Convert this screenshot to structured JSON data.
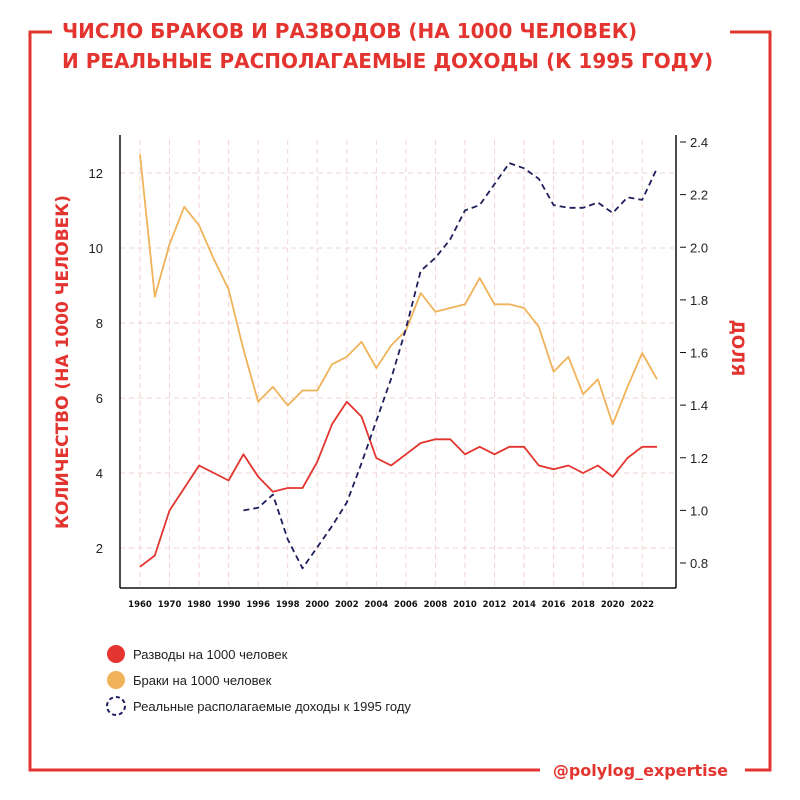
{
  "title_line1": "ЧИСЛО БРАКОВ И РАЗВОДОВ (НА 1000 ЧЕЛОВЕК)",
  "title_line2": "И РЕАЛЬНЫЕ РАСПОЛАГАЕМЫЕ ДОХОДЫ (К 1995 ГОДУ)",
  "handle": "@polylog_expertise",
  "colors": {
    "accent": "#e3342f",
    "divorces": "#e3342f",
    "marriages": "#f0b35a",
    "income": "#1f1f5e"
  },
  "chart_data": {
    "type": "line",
    "x": [
      "1960",
      "1965",
      "1970",
      "1975",
      "1980",
      "1985",
      "1990",
      "1995",
      "1996",
      "1997",
      "1998",
      "1999",
      "2000",
      "2001",
      "2002",
      "2003",
      "2004",
      "2005",
      "2006",
      "2007",
      "2008",
      "2009",
      "2010",
      "2011",
      "2012",
      "2013",
      "2014",
      "2015",
      "2016",
      "2017",
      "2018",
      "2019",
      "2020",
      "2021",
      "2022",
      "2023"
    ],
    "xticks": [
      "1960",
      "1970",
      "1980",
      "1990",
      "1996",
      "1998",
      "2000",
      "2002",
      "2004",
      "2006",
      "2008",
      "2010",
      "2012",
      "2014",
      "2016",
      "2018",
      "2020",
      "2022"
    ],
    "ylabel_left": "КОЛИЧЕСТВО (НА 1000 ЧЕЛОВЕК)",
    "ylabel_right": "ДОЛЯ",
    "y_left_ticks": [
      "2",
      "4",
      "6",
      "8",
      "10",
      "12"
    ],
    "y_right_ticks": [
      "0.8",
      "1.0",
      "1.2",
      "1.4",
      "1.6",
      "1.8",
      "2.0",
      "2.2",
      "2.4"
    ],
    "series": [
      {
        "name": "Разводы на 1000 человек",
        "axis": "left",
        "values": [
          1.5,
          1.8,
          3.0,
          3.6,
          4.2,
          4.0,
          3.8,
          4.5,
          3.9,
          3.5,
          3.6,
          3.6,
          4.3,
          5.3,
          5.9,
          5.5,
          4.4,
          4.2,
          4.5,
          4.8,
          4.9,
          4.9,
          4.5,
          4.7,
          4.5,
          4.7,
          4.7,
          4.2,
          4.1,
          4.2,
          4.0,
          4.2,
          3.9,
          4.4,
          4.7,
          4.7
        ]
      },
      {
        "name": "Браки на 1000 человек",
        "axis": "left",
        "values": [
          12.5,
          8.7,
          10.1,
          11.1,
          10.6,
          9.7,
          8.9,
          7.3,
          5.9,
          6.3,
          5.8,
          6.2,
          6.2,
          6.9,
          7.1,
          7.5,
          6.8,
          7.4,
          7.8,
          8.8,
          8.3,
          8.4,
          8.5,
          9.2,
          8.5,
          8.5,
          8.4,
          7.9,
          6.7,
          7.1,
          6.1,
          6.5,
          5.3,
          6.3,
          7.2,
          6.5
        ]
      },
      {
        "name": "Реальные располагаемые доходы к 1995 году",
        "axis": "right",
        "values": [
          null,
          null,
          null,
          null,
          null,
          null,
          null,
          1.0,
          1.01,
          1.06,
          0.89,
          0.78,
          0.86,
          0.94,
          1.03,
          1.18,
          1.34,
          1.5,
          1.69,
          1.91,
          1.96,
          2.03,
          2.14,
          2.16,
          2.24,
          2.32,
          2.3,
          2.26,
          2.16,
          2.15,
          2.15,
          2.17,
          2.13,
          2.19,
          2.18,
          2.3
        ]
      }
    ],
    "legend_position": "bottom-left",
    "grid": true
  }
}
